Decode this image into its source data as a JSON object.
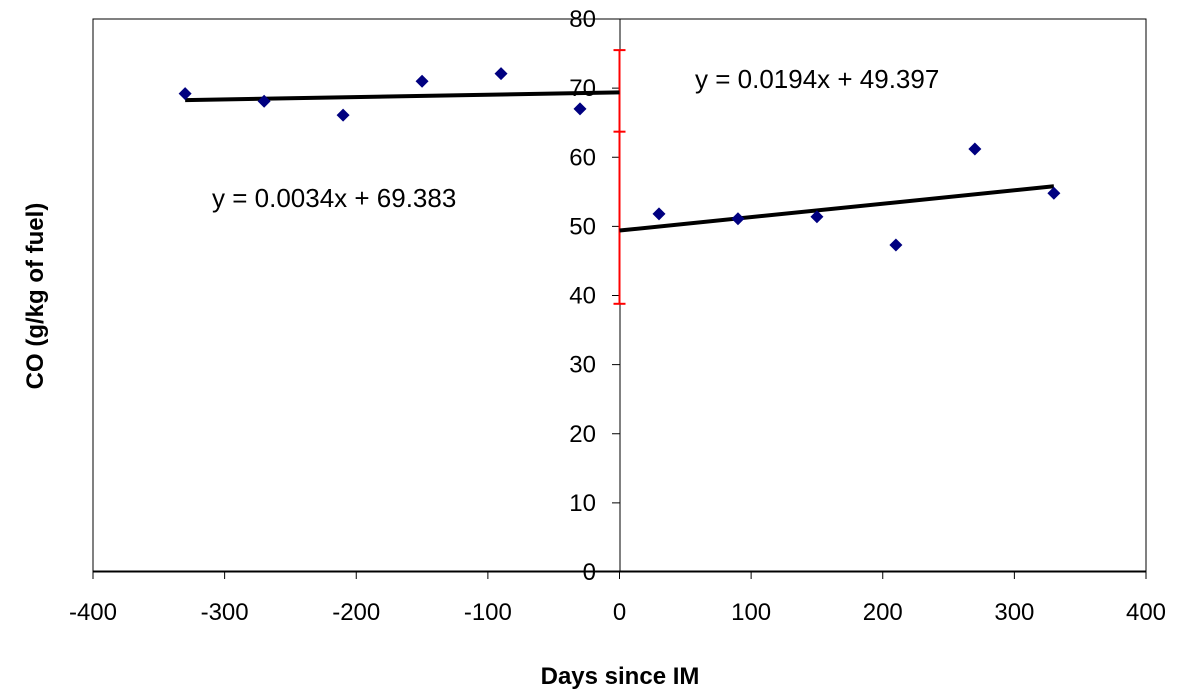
{
  "chart_data": {
    "type": "scatter",
    "title": "",
    "xlabel": "Days since IM",
    "ylabel": "CO (g/kg of fuel)",
    "xlim": [
      -400,
      400
    ],
    "ylim": [
      0,
      80
    ],
    "x_ticks": [
      -400,
      -300,
      -200,
      -100,
      0,
      100,
      200,
      300,
      400
    ],
    "y_ticks": [
      0,
      10,
      20,
      30,
      40,
      50,
      60,
      70,
      80
    ],
    "grid": false,
    "legend": "none",
    "colors": {
      "points": "#000080",
      "trendline": "#000000",
      "error_bar": "#ff0000",
      "frame": "#000000"
    },
    "series": [
      {
        "x": [
          -330,
          -270,
          -210,
          -150,
          -90,
          -30,
          30,
          90,
          150,
          210,
          270,
          330
        ],
        "y": [
          69.2,
          68.1,
          66.1,
          71.0,
          72.1,
          67.0,
          51.8,
          51.1,
          51.4,
          47.3,
          61.2,
          54.8
        ]
      }
    ],
    "trendlines": [
      {
        "slope": 0.0034,
        "intercept": 69.383,
        "x_range": [
          -330,
          0
        ],
        "equation": "y = 0.0034x + 69.383"
      },
      {
        "slope": 0.0194,
        "intercept": 49.397,
        "x_range": [
          0,
          330
        ],
        "equation": "y = 0.0194x + 49.397"
      }
    ],
    "error_bars": [
      {
        "x": 0,
        "low": 38.8,
        "mid": 63.7,
        "high": 75.5
      }
    ]
  }
}
